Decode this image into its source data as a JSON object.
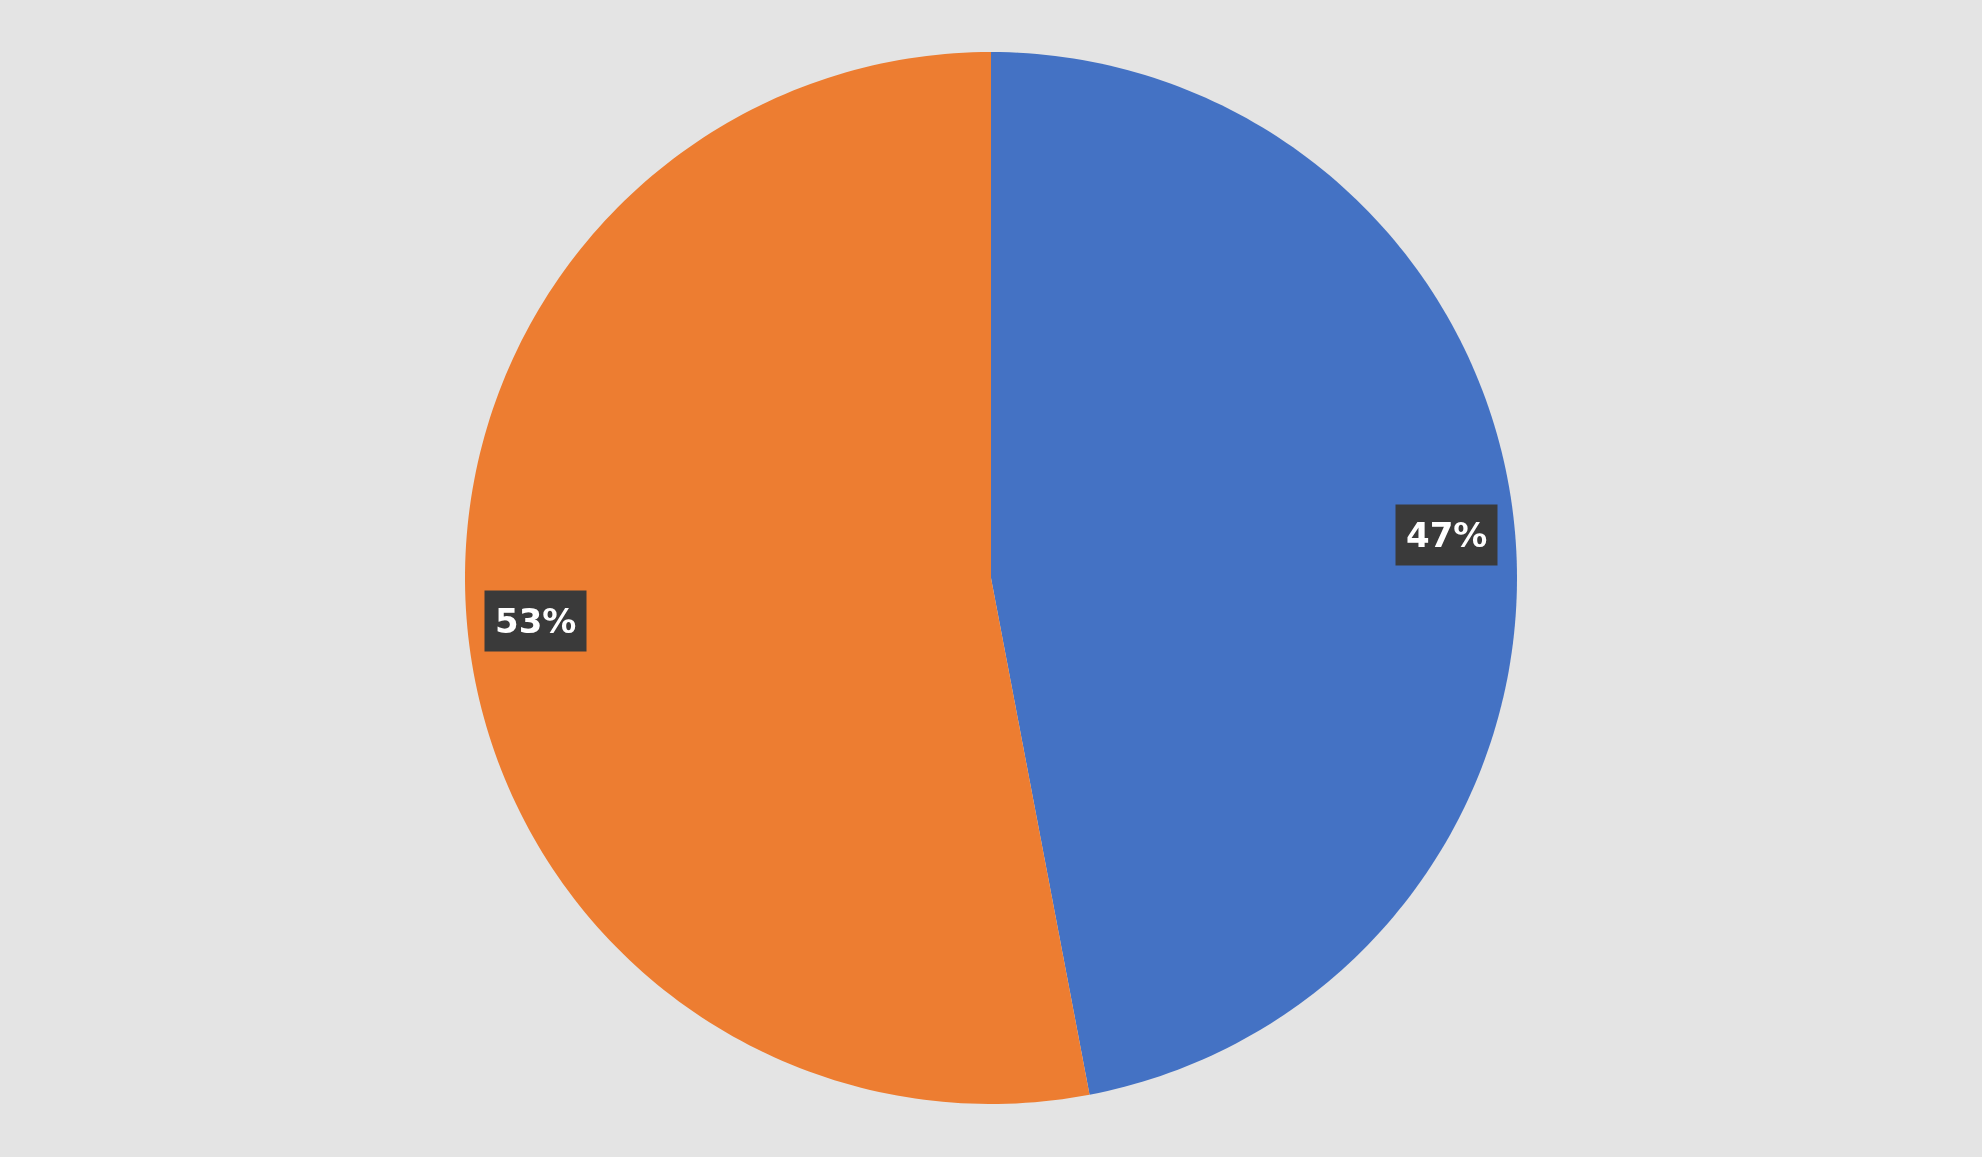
{
  "chart_data": {
    "type": "pie",
    "categories": [
      null,
      null
    ],
    "values": [
      47,
      53
    ],
    "colors": [
      "#4472c4",
      "#ed7d31"
    ],
    "value_labels": [
      "47%",
      "53%"
    ]
  }
}
